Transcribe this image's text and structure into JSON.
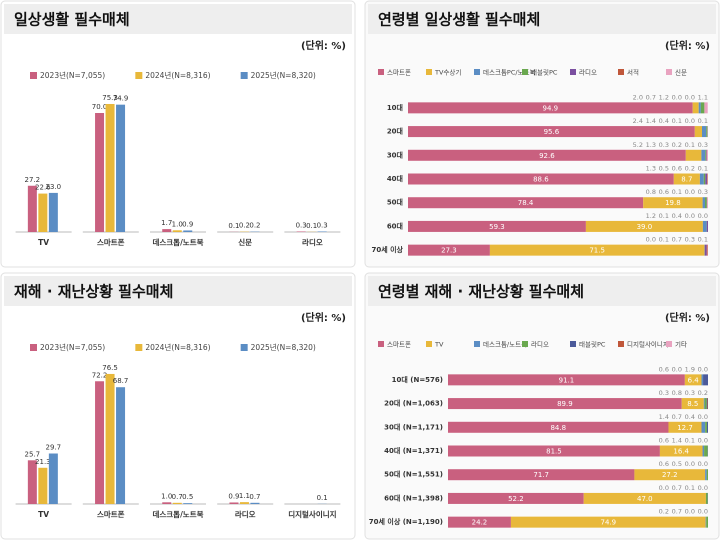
{
  "chart_data": [
    {
      "type": "bar",
      "title": "일상생활 필수매체",
      "subtitle": "(단위: %)",
      "categories": [
        "TV",
        "스마트폰",
        "데스크톱/노트북",
        "신문",
        "라디오"
      ],
      "series": [
        {
          "name": "2023년(N=7,055)",
          "color": "#c9607f",
          "values": [
            27.2,
            70.0,
            1.7,
            0.1,
            0.3
          ],
          "value_labels": [
            "27.2",
            "70.0",
            "1.7",
            "0.1",
            "0.3"
          ]
        },
        {
          "name": "2024년(N=8,316)",
          "color": "#e8b83a",
          "values": [
            22.6,
            75.3,
            1.0,
            0.2,
            0.1
          ],
          "value_labels": [
            "22.6",
            "75.3",
            "1.0",
            "0.2",
            "0.1"
          ]
        },
        {
          "name": "2025년(N=8,320)",
          "color": "#5b8dc4",
          "values": [
            23.0,
            74.9,
            0.9,
            0.2,
            0.3
          ],
          "value_labels": [
            "23.0",
            "74.9",
            "0.9",
            "0.2",
            "0.3"
          ]
        }
      ]
    },
    {
      "type": "hbar",
      "title": "연령별 일상생활 필수매체",
      "subtitle": "(단위: %)",
      "categories": [
        "10대",
        "20대",
        "30대",
        "40대",
        "50대",
        "60대",
        "70세 이상"
      ],
      "series": [
        {
          "name": "스마트폰",
          "color": "#c9607f",
          "values": [
            94.9,
            95.6,
            92.6,
            88.6,
            78.4,
            59.3,
            27.3
          ],
          "value_labels": [
            "94.9",
            "95.6",
            "92.6",
            "88.6",
            "78.4",
            "59.3",
            "27.3"
          ]
        },
        {
          "name": "TV수상기",
          "color": "#e8b83a",
          "values": [
            2.0,
            2.4,
            5.2,
            8.7,
            19.8,
            39.0,
            71.5
          ],
          "value_labels": [
            "2.0",
            "2.4",
            "5.2",
            "8.7",
            "19.8",
            "39.0",
            "71.5"
          ]
        },
        {
          "name": "데스크톱PC/노트북",
          "color": "#5b8dc4",
          "values": [
            0.7,
            1.4,
            1.3,
            1.3,
            0.8,
            1.2,
            0.0
          ],
          "value_labels": [
            "0.7",
            "1.4",
            "1.3",
            "1.3",
            "0.8",
            "1.2",
            "0.0"
          ]
        },
        {
          "name": "태블릿PC",
          "color": "#6aa84f",
          "values": [
            1.2,
            0.4,
            0.3,
            0.5,
            0.6,
            0.1,
            0.1
          ],
          "value_labels": [
            "1.2",
            "0.4",
            "0.3",
            "0.5",
            "0.6",
            "0.1",
            "0.1"
          ]
        },
        {
          "name": "라디오",
          "color": "#7b4fa0",
          "values": [
            0.0,
            0.1,
            0.2,
            0.6,
            0.1,
            0.4,
            0.7
          ],
          "value_labels": [
            "0.0",
            "0.1",
            "0.2",
            "0.6",
            "0.1",
            "0.4",
            "0.7"
          ]
        },
        {
          "name": "서적",
          "color": "#c0573a",
          "values": [
            0.0,
            0.0,
            0.1,
            0.2,
            0.0,
            0.0,
            0.3
          ],
          "value_labels": [
            "0.0",
            "0.0",
            "0.1",
            "0.2",
            "0.0",
            "0.0",
            "0.3"
          ]
        },
        {
          "name": "신문",
          "color": "#e9a3c0",
          "values": [
            1.1,
            0.1,
            0.3,
            0.1,
            0.3,
            0.0,
            0.1
          ],
          "value_labels": [
            "1.1",
            "0.1",
            "0.3",
            "0.1",
            "0.3",
            "0.0",
            "0.1"
          ]
        }
      ]
    },
    {
      "type": "bar",
      "title": "재해 · 재난상황 필수매체",
      "subtitle": "(단위: %)",
      "categories": [
        "TV",
        "스마트폰",
        "데스크톱/노트북",
        "라디오",
        "디지털사이니지"
      ],
      "series": [
        {
          "name": "2023년(N=7,055)",
          "color": "#c9607f",
          "values": [
            25.7,
            72.2,
            1.0,
            0.9,
            null
          ],
          "value_labels": [
            "25.7",
            "72.2",
            "1.0",
            "0.9",
            null
          ]
        },
        {
          "name": "2024년(N=8,316)",
          "color": "#e8b83a",
          "values": [
            21.3,
            76.5,
            0.7,
            1.1,
            null
          ],
          "value_labels": [
            "21.3",
            "76.5",
            "0.7",
            "1.1",
            null
          ]
        },
        {
          "name": "2025년(N=8,320)",
          "color": "#5b8dc4",
          "values": [
            29.7,
            68.7,
            0.5,
            0.7,
            0.1
          ],
          "value_labels": [
            "29.7",
            "68.7",
            "0.5",
            "0.7",
            "0.1"
          ]
        }
      ]
    },
    {
      "type": "hbar",
      "title": "연령별 재해 · 재난상황 필수매체",
      "subtitle": "(단위: %)",
      "categories": [
        "10대 (N=576)",
        "20대 (N=1,063)",
        "30대 (N=1,171)",
        "40대 (N=1,371)",
        "50대 (N=1,551)",
        "60대 (N=1,398)",
        "70세 이상 (N=1,190)"
      ],
      "series": [
        {
          "name": "스마트폰",
          "color": "#c9607f",
          "values": [
            91.1,
            89.9,
            84.8,
            81.5,
            71.7,
            52.2,
            24.2
          ],
          "value_labels": [
            "91.1",
            "89.9",
            "84.8",
            "81.5",
            "71.7",
            "52.2",
            "24.2"
          ]
        },
        {
          "name": "TV",
          "color": "#e8b83a",
          "values": [
            6.4,
            8.5,
            12.7,
            16.4,
            27.2,
            47.0,
            74.9
          ],
          "value_labels": [
            "6.4",
            "8.5",
            "12.7",
            "16.4",
            "27.2",
            "47.0",
            "74.9"
          ]
        },
        {
          "name": "데스크톱/노트북",
          "color": "#5b8dc4",
          "values": [
            0.6,
            0.3,
            1.4,
            0.6,
            0.6,
            0.0,
            0.2
          ],
          "value_labels": [
            "0.6",
            "0.3",
            "1.4",
            "0.6",
            "0.6",
            "0.0",
            "0.2"
          ]
        },
        {
          "name": "라디오",
          "color": "#6aa84f",
          "values": [
            0.0,
            0.8,
            0.7,
            1.4,
            0.5,
            0.7,
            0.7
          ],
          "value_labels": [
            "0.0",
            "0.8",
            "0.7",
            "1.4",
            "0.5",
            "0.7",
            "0.7"
          ]
        },
        {
          "name": "태블릿PC",
          "color": "#4b5a9a",
          "values": [
            1.9,
            0.3,
            0.4,
            0.1,
            0.0,
            0.1,
            0.0
          ],
          "value_labels": [
            "1.9",
            "0.3",
            "0.4",
            "0.1",
            "0.0",
            "0.1",
            "0.0"
          ]
        },
        {
          "name": "디지털사이니지",
          "color": "#c0573a",
          "values": [
            0.0,
            0.2,
            0.0,
            0.0,
            0.0,
            0.0,
            0.0
          ],
          "value_labels": [
            "0.0",
            "0.2",
            "0.0",
            "0.0",
            "0.0",
            "0.0",
            "0.0"
          ]
        },
        {
          "name": "기타",
          "color": "#e9a3c0",
          "values": [
            null,
            null,
            null,
            null,
            null,
            null,
            null
          ],
          "value_labels": [
            null,
            null,
            null,
            null,
            null,
            null,
            null
          ]
        }
      ]
    }
  ]
}
